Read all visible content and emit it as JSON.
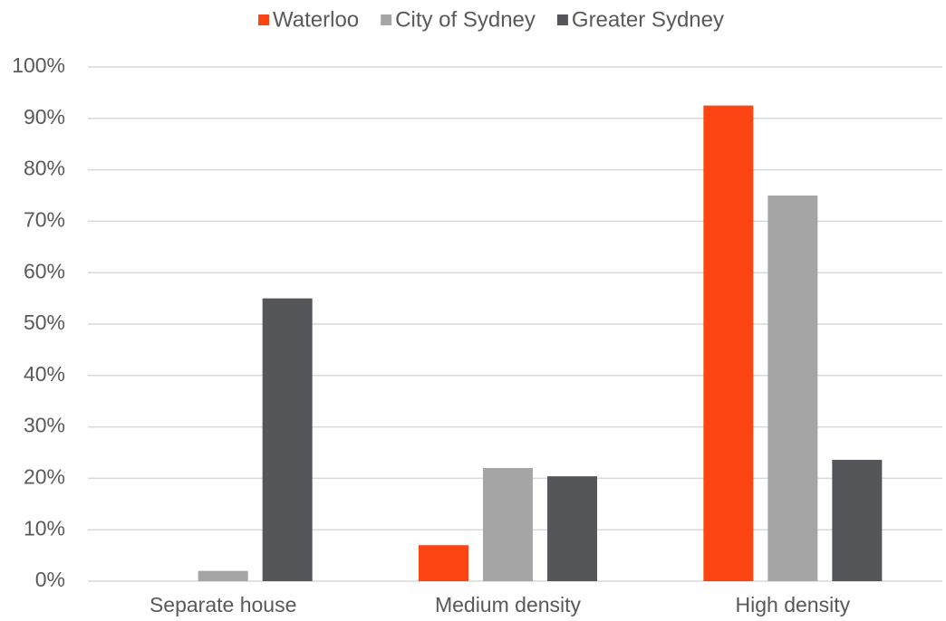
{
  "chart_data": {
    "type": "bar",
    "categories": [
      "Separate house",
      "Medium density",
      "High density"
    ],
    "series": [
      {
        "name": "Waterloo",
        "color": "#fc4513",
        "values": [
          0,
          7,
          92.5
        ]
      },
      {
        "name": "City of Sydney",
        "color": "#a5a5a5",
        "values": [
          2,
          22,
          75
        ]
      },
      {
        "name": "Greater Sydney",
        "color": "#545659",
        "values": [
          55,
          20.4,
          23.6
        ]
      }
    ],
    "ylim": [
      0,
      100
    ],
    "yticks": [
      {
        "value": 0,
        "label": "0%"
      },
      {
        "value": 10,
        "label": "10%"
      },
      {
        "value": 20,
        "label": "20%"
      },
      {
        "value": 30,
        "label": "30%"
      },
      {
        "value": 40,
        "label": "40%"
      },
      {
        "value": 50,
        "label": "50%"
      },
      {
        "value": 60,
        "label": "60%"
      },
      {
        "value": 70,
        "label": "70%"
      },
      {
        "value": 80,
        "label": "80%"
      },
      {
        "value": 90,
        "label": "90%"
      },
      {
        "value": 100,
        "label": "100%"
      }
    ],
    "grid": true,
    "legend": "top"
  }
}
